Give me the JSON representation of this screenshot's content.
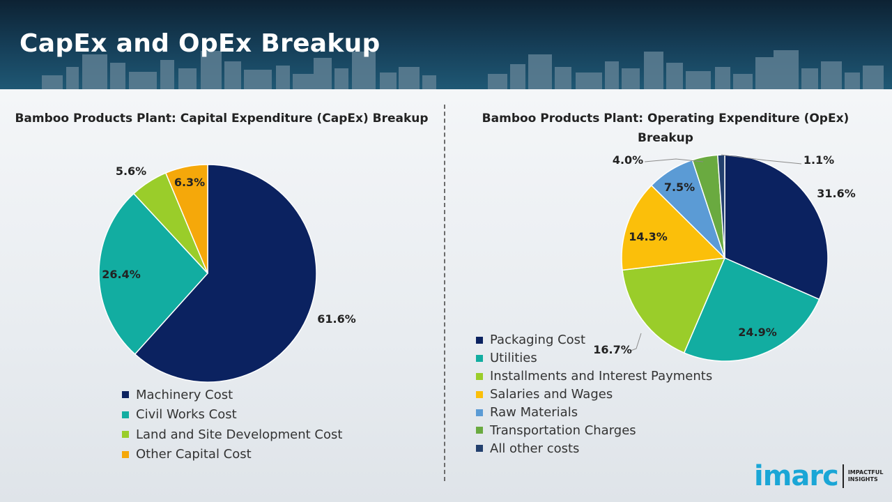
{
  "header": {
    "title": "CapEx and OpEx Breakup"
  },
  "chart_data": [
    {
      "type": "pie",
      "title": "Bamboo Products Plant: Capital Expenditure (CapEx) Breakup",
      "categories": [
        "Machinery Cost",
        "Civil Works Cost",
        "Land and Site Development Cost",
        "Other Capital Cost"
      ],
      "values": [
        61.6,
        26.4,
        5.6,
        6.3
      ],
      "labels": [
        "61.6%",
        "26.4%",
        "5.6%",
        "6.3%"
      ],
      "colors": [
        "#0b2260",
        "#12ada1",
        "#9acd2a",
        "#f5a80a"
      ],
      "legend": "bottom"
    },
    {
      "type": "pie",
      "title": "Bamboo Products Plant: Operating Expenditure (OpEx) Breakup",
      "categories": [
        "Packaging Cost",
        "Utilities",
        "Installments and Interest Payments",
        "Salaries and Wages",
        "Raw Materials",
        "Transportation Charges",
        "All other costs"
      ],
      "values": [
        31.6,
        24.9,
        16.7,
        14.3,
        7.5,
        4.0,
        1.1
      ],
      "labels": [
        "31.6%",
        "24.9%",
        "16.7%",
        "14.3%",
        "7.5%",
        "4.0%",
        "1.1%"
      ],
      "colors": [
        "#0b2260",
        "#12ada1",
        "#9acd2a",
        "#fbbf0a",
        "#5b9bd5",
        "#6aaa40",
        "#23406e"
      ],
      "legend": "bottom-left"
    }
  ],
  "logo": {
    "word": "imarc",
    "tagline_1": "IMPACTFUL",
    "tagline_2": "INSIGHTS"
  }
}
